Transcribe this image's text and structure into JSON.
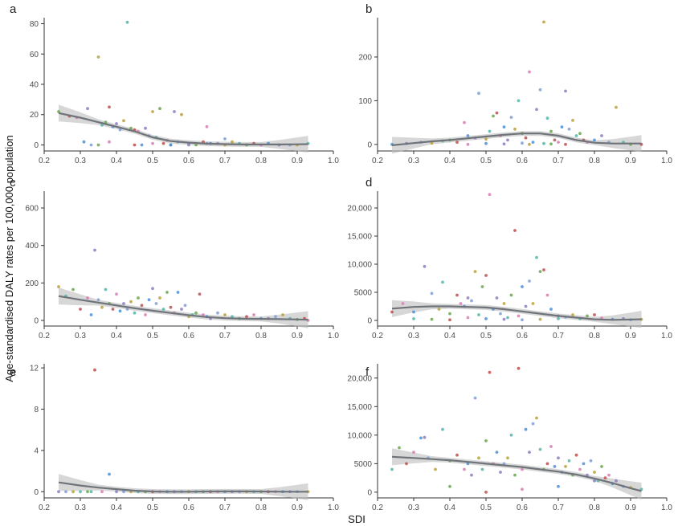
{
  "figure": {
    "ylabel": "Age-standardised DALY rates per 100,000 population",
    "xlabel": "SDI"
  },
  "colors": {
    "points": [
      "#6aa84f",
      "#4a90d9",
      "#b8a13a",
      "#c0504d",
      "#8e7cc3",
      "#55b6a8",
      "#d77fb3",
      "#7f9fd6"
    ],
    "smooth_line": "#6f747b",
    "ribbon": "#bdbdbd"
  },
  "chart_data": [
    {
      "panel": "a",
      "type": "scatter",
      "xlim": [
        0.2,
        1.0
      ],
      "ylim": [
        -4,
        84
      ],
      "x_ticks": [
        0.2,
        0.3,
        0.4,
        0.5,
        0.6,
        0.7,
        0.8,
        0.9,
        1.0
      ],
      "y_ticks": [
        0,
        20,
        40,
        60,
        80
      ],
      "y_tick_labels": [
        "0",
        "20",
        "40",
        "60",
        "80"
      ],
      "grid": false,
      "x": [
        0.24,
        0.27,
        0.29,
        0.31,
        0.32,
        0.33,
        0.35,
        0.36,
        0.37,
        0.38,
        0.38,
        0.39,
        0.4,
        0.41,
        0.42,
        0.43,
        0.44,
        0.45,
        0.46,
        0.47,
        0.48,
        0.49,
        0.5,
        0.51,
        0.52,
        0.53,
        0.54,
        0.55,
        0.56,
        0.57,
        0.58,
        0.6,
        0.62,
        0.64,
        0.65,
        0.66,
        0.68,
        0.7,
        0.72,
        0.74,
        0.76,
        0.78,
        0.8,
        0.82,
        0.85,
        0.88,
        0.9,
        0.93,
        0.35,
        0.45,
        0.5,
        0.55,
        0.6,
        0.65,
        0.7
      ],
      "y": [
        22,
        19,
        18,
        2,
        24,
        0,
        58,
        13,
        15,
        25,
        2,
        12,
        14,
        10,
        16,
        81,
        11,
        10,
        9,
        0,
        11,
        6,
        22,
        5,
        24,
        1,
        3,
        0,
        22,
        2,
        20,
        1,
        0,
        2,
        12,
        1,
        1,
        4,
        2,
        1,
        0,
        1,
        0,
        1,
        0,
        0,
        0,
        1,
        0,
        0,
        1,
        0,
        0,
        1,
        0
      ],
      "smooth": {
        "x": [
          0.24,
          0.3,
          0.35,
          0.4,
          0.45,
          0.5,
          0.55,
          0.6,
          0.65,
          0.7,
          0.75,
          0.8,
          0.85,
          0.9,
          0.93
        ],
        "y": [
          21,
          18,
          15,
          12,
          9,
          5,
          2.5,
          1.5,
          0.8,
          0.5,
          0.3,
          0.3,
          0.3,
          0.4,
          0.5
        ]
      }
    },
    {
      "panel": "b",
      "type": "scatter",
      "xlim": [
        0.2,
        1.0
      ],
      "ylim": [
        -15,
        290
      ],
      "x_ticks": [
        0.2,
        0.3,
        0.4,
        0.5,
        0.6,
        0.7,
        0.8,
        0.9,
        1.0
      ],
      "y_ticks": [
        0,
        100,
        200
      ],
      "y_tick_labels": [
        "0",
        "100",
        "200"
      ],
      "grid": false,
      "x": [
        0.24,
        0.28,
        0.32,
        0.35,
        0.38,
        0.4,
        0.42,
        0.44,
        0.45,
        0.47,
        0.48,
        0.5,
        0.51,
        0.52,
        0.53,
        0.54,
        0.55,
        0.56,
        0.57,
        0.58,
        0.59,
        0.6,
        0.61,
        0.62,
        0.63,
        0.64,
        0.65,
        0.66,
        0.67,
        0.68,
        0.69,
        0.7,
        0.71,
        0.72,
        0.73,
        0.74,
        0.75,
        0.76,
        0.77,
        0.78,
        0.8,
        0.82,
        0.84,
        0.86,
        0.88,
        0.9,
        0.93,
        0.45,
        0.5,
        0.55,
        0.6,
        0.62,
        0.66,
        0.68,
        0.72
      ],
      "y": [
        0,
        2,
        5,
        3,
        8,
        10,
        5,
        50,
        20,
        15,
        117,
        12,
        30,
        65,
        72,
        20,
        40,
        10,
        62,
        35,
        100,
        25,
        15,
        166,
        5,
        80,
        125,
        280,
        60,
        30,
        10,
        5,
        40,
        122,
        35,
        55,
        20,
        25,
        10,
        5,
        10,
        20,
        5,
        85,
        5,
        0,
        0,
        0,
        2,
        1,
        3,
        0,
        2,
        1,
        0
      ],
      "smooth": {
        "x": [
          0.24,
          0.3,
          0.35,
          0.4,
          0.45,
          0.5,
          0.55,
          0.6,
          0.65,
          0.7,
          0.75,
          0.8,
          0.85,
          0.9,
          0.93
        ],
        "y": [
          -2,
          3,
          7,
          10,
          14,
          18,
          22,
          25,
          25,
          20,
          10,
          4,
          2,
          2,
          2
        ]
      }
    },
    {
      "panel": "c",
      "type": "scatter",
      "xlim": [
        0.2,
        1.0
      ],
      "ylim": [
        -30,
        690
      ],
      "x_ticks": [
        0.2,
        0.3,
        0.4,
        0.5,
        0.6,
        0.7,
        0.8,
        0.9,
        1.0
      ],
      "y_ticks": [
        0,
        200,
        400,
        600
      ],
      "y_tick_labels": [
        "0",
        "200",
        "400",
        "600"
      ],
      "grid": false,
      "x": [
        0.24,
        0.26,
        0.28,
        0.3,
        0.32,
        0.33,
        0.34,
        0.35,
        0.36,
        0.37,
        0.38,
        0.39,
        0.4,
        0.41,
        0.42,
        0.43,
        0.44,
        0.45,
        0.46,
        0.47,
        0.48,
        0.49,
        0.5,
        0.51,
        0.52,
        0.53,
        0.54,
        0.55,
        0.56,
        0.57,
        0.58,
        0.59,
        0.6,
        0.61,
        0.62,
        0.63,
        0.64,
        0.65,
        0.66,
        0.68,
        0.7,
        0.72,
        0.74,
        0.76,
        0.78,
        0.8,
        0.82,
        0.84,
        0.86,
        0.88,
        0.9,
        0.92,
        0.93
      ],
      "y": [
        180,
        130,
        165,
        60,
        120,
        30,
        375,
        110,
        70,
        165,
        90,
        60,
        140,
        50,
        90,
        60,
        100,
        40,
        120,
        80,
        30,
        110,
        170,
        90,
        120,
        60,
        150,
        70,
        40,
        150,
        60,
        80,
        20,
        30,
        40,
        140,
        30,
        20,
        10,
        40,
        30,
        20,
        10,
        20,
        30,
        10,
        10,
        20,
        30,
        10,
        5,
        10,
        0
      ],
      "smooth": {
        "x": [
          0.24,
          0.3,
          0.35,
          0.4,
          0.45,
          0.5,
          0.55,
          0.6,
          0.65,
          0.7,
          0.75,
          0.8,
          0.85,
          0.9,
          0.93
        ],
        "y": [
          130,
          110,
          95,
          80,
          65,
          52,
          40,
          28,
          18,
          12,
          9,
          8,
          7,
          5,
          4
        ]
      }
    },
    {
      "panel": "d",
      "type": "scatter",
      "xlim": [
        0.2,
        1.0
      ],
      "ylim": [
        -1000,
        23000
      ],
      "x_ticks": [
        0.2,
        0.3,
        0.4,
        0.5,
        0.6,
        0.7,
        0.8,
        0.9,
        1.0
      ],
      "y_ticks": [
        0,
        5000,
        10000,
        15000,
        20000
      ],
      "y_tick_labels": [
        "0",
        "5000",
        "10,000",
        "15,000",
        "20,000"
      ],
      "grid": false,
      "x": [
        0.24,
        0.27,
        0.3,
        0.33,
        0.35,
        0.37,
        0.38,
        0.4,
        0.42,
        0.43,
        0.44,
        0.45,
        0.46,
        0.47,
        0.48,
        0.49,
        0.5,
        0.51,
        0.52,
        0.53,
        0.54,
        0.55,
        0.56,
        0.57,
        0.58,
        0.59,
        0.6,
        0.61,
        0.62,
        0.63,
        0.64,
        0.65,
        0.66,
        0.67,
        0.68,
        0.7,
        0.72,
        0.74,
        0.76,
        0.78,
        0.8,
        0.82,
        0.85,
        0.88,
        0.9,
        0.93,
        0.3,
        0.35,
        0.4,
        0.45,
        0.5,
        0.55,
        0.6,
        0.65,
        0.7
      ],
      "y": [
        1500,
        3000,
        1500,
        9600,
        4800,
        2000,
        6800,
        1200,
        4500,
        3000,
        2500,
        4000,
        3500,
        8700,
        1000,
        6000,
        8000,
        22400,
        2000,
        4000,
        1200,
        3000,
        500,
        4500,
        16000,
        800,
        6000,
        2500,
        7000,
        3000,
        11200,
        8700,
        9000,
        4500,
        2000,
        800,
        600,
        1000,
        300,
        800,
        1000,
        400,
        200,
        300,
        100,
        200,
        300,
        200,
        100,
        500,
        300,
        200,
        100,
        200,
        300
      ],
      "smooth": {
        "x": [
          0.24,
          0.3,
          0.35,
          0.4,
          0.45,
          0.5,
          0.55,
          0.6,
          0.65,
          0.7,
          0.75,
          0.8,
          0.85,
          0.9,
          0.93
        ],
        "y": [
          2100,
          2400,
          2500,
          2500,
          2400,
          2300,
          2000,
          1600,
          1200,
          800,
          500,
          200,
          100,
          150,
          200
        ]
      }
    },
    {
      "panel": "e",
      "type": "scatter",
      "xlim": [
        0.2,
        1.0
      ],
      "ylim": [
        -0.6,
        12.4
      ],
      "x_ticks": [
        0.2,
        0.3,
        0.4,
        0.5,
        0.6,
        0.7,
        0.8,
        0.9,
        1.0
      ],
      "y_ticks": [
        0,
        4,
        8,
        12
      ],
      "y_tick_labels": [
        "0",
        "4",
        "8",
        "12"
      ],
      "grid": false,
      "x": [
        0.24,
        0.26,
        0.28,
        0.3,
        0.32,
        0.34,
        0.36,
        0.38,
        0.4,
        0.42,
        0.44,
        0.46,
        0.48,
        0.5,
        0.52,
        0.54,
        0.56,
        0.58,
        0.6,
        0.62,
        0.64,
        0.66,
        0.68,
        0.7,
        0.72,
        0.74,
        0.76,
        0.78,
        0.8,
        0.82,
        0.84,
        0.86,
        0.88,
        0.9,
        0.93,
        0.33
      ],
      "y": [
        0,
        0,
        0,
        0,
        0,
        11.8,
        0,
        1.7,
        0,
        0,
        0,
        0,
        0,
        0,
        0,
        0,
        0,
        0,
        0,
        0,
        0,
        0,
        0,
        0,
        0,
        0,
        0,
        0,
        0,
        0,
        0,
        0,
        0,
        0,
        0,
        0
      ],
      "smooth": {
        "x": [
          0.24,
          0.3,
          0.35,
          0.4,
          0.45,
          0.5,
          0.55,
          0.6,
          0.65,
          0.7,
          0.75,
          0.8,
          0.85,
          0.9,
          0.93
        ],
        "y": [
          0.9,
          0.6,
          0.4,
          0.25,
          0.1,
          0.02,
          0,
          0,
          0.02,
          0.03,
          0.03,
          0.02,
          0.01,
          0,
          0
        ]
      }
    },
    {
      "panel": "f",
      "type": "scatter",
      "xlim": [
        0.2,
        1.0
      ],
      "ylim": [
        -1000,
        22500
      ],
      "x_ticks": [
        0.2,
        0.3,
        0.4,
        0.5,
        0.6,
        0.7,
        0.8,
        0.9,
        1.0
      ],
      "y_ticks": [
        0,
        5000,
        10000,
        15000,
        20000
      ],
      "y_tick_labels": [
        "0",
        "5000",
        "10,000",
        "15,000",
        "20,000"
      ],
      "grid": false,
      "x": [
        0.24,
        0.26,
        0.28,
        0.3,
        0.32,
        0.33,
        0.34,
        0.36,
        0.38,
        0.4,
        0.42,
        0.44,
        0.45,
        0.46,
        0.47,
        0.48,
        0.49,
        0.5,
        0.51,
        0.52,
        0.53,
        0.54,
        0.55,
        0.56,
        0.57,
        0.58,
        0.59,
        0.6,
        0.61,
        0.62,
        0.63,
        0.64,
        0.65,
        0.66,
        0.67,
        0.68,
        0.69,
        0.7,
        0.71,
        0.72,
        0.73,
        0.74,
        0.75,
        0.76,
        0.77,
        0.78,
        0.79,
        0.8,
        0.81,
        0.82,
        0.83,
        0.84,
        0.85,
        0.86,
        0.88,
        0.9,
        0.93,
        0.4,
        0.5,
        0.6,
        0.7,
        0.8
      ],
      "y": [
        4000,
        7800,
        5000,
        7000,
        9500,
        9600,
        6000,
        4000,
        11000,
        5500,
        6500,
        4000,
        5000,
        3000,
        16500,
        6000,
        4000,
        9000,
        21000,
        5000,
        7000,
        3500,
        5000,
        6000,
        10000,
        3000,
        21700,
        4000,
        11000,
        7000,
        12000,
        13000,
        7500,
        4000,
        5000,
        8000,
        4500,
        6000,
        3500,
        4500,
        5500,
        3000,
        6500,
        4000,
        5000,
        3000,
        5500,
        3500,
        2000,
        4500,
        2500,
        3000,
        1500,
        2000,
        1000,
        800,
        500,
        1000,
        0,
        500,
        1000,
        2000
      ],
      "smooth": {
        "x": [
          0.24,
          0.3,
          0.35,
          0.4,
          0.45,
          0.5,
          0.55,
          0.6,
          0.65,
          0.7,
          0.75,
          0.8,
          0.85,
          0.9,
          0.93
        ],
        "y": [
          6200,
          6000,
          5800,
          5600,
          5300,
          5000,
          4700,
          4400,
          4000,
          3600,
          3100,
          2400,
          1600,
          700,
          200
        ]
      }
    }
  ]
}
